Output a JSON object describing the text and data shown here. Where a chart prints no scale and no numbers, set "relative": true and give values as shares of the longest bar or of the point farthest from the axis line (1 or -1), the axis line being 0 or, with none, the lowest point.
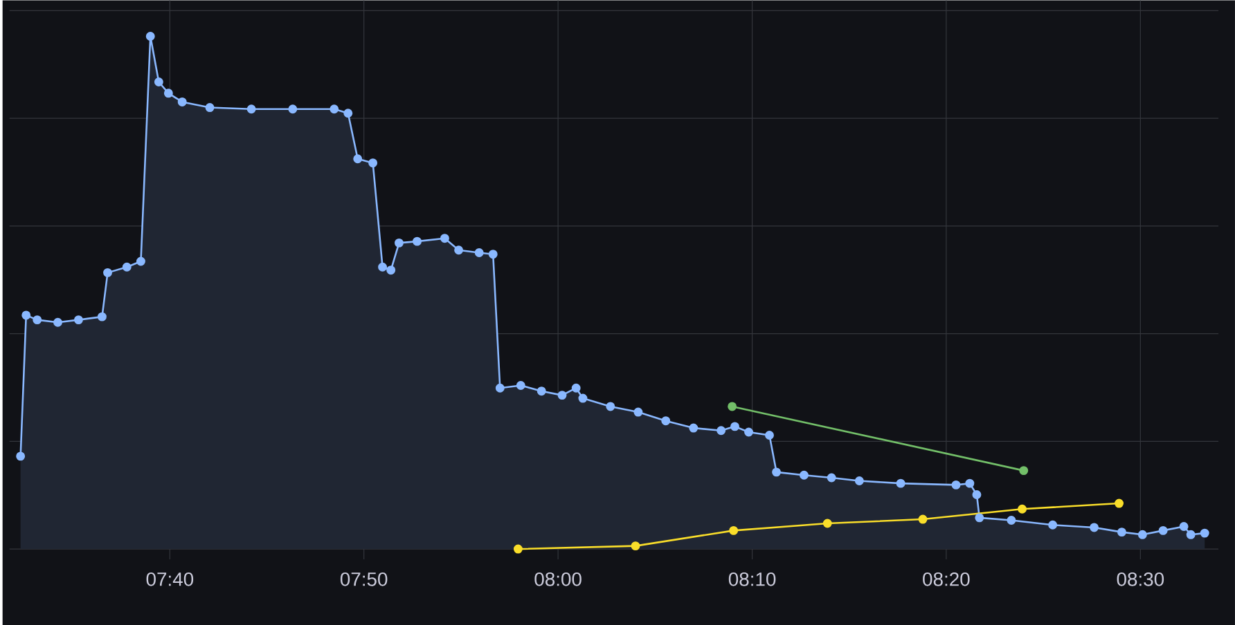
{
  "chart_data": {
    "type": "line",
    "relative": true,
    "grid": true,
    "marker": "circle",
    "xlim": [
      7.529,
      8.567
    ],
    "xticks": [
      {
        "value": 7.6667,
        "label": "07:40"
      },
      {
        "value": 7.8333,
        "label": "07:50"
      },
      {
        "value": 8.0,
        "label": "08:00"
      },
      {
        "value": 8.1667,
        "label": "08:10"
      },
      {
        "value": 8.3333,
        "label": "08:20"
      },
      {
        "value": 8.5,
        "label": "08:30"
      }
    ],
    "series": [
      {
        "type": "area",
        "color": "#8ab8ff",
        "x": [
          7.5385,
          7.5433,
          7.5528,
          7.5705,
          7.5883,
          7.6085,
          7.6133,
          7.6298,
          7.6418,
          7.65,
          7.6572,
          7.6655,
          7.6773,
          7.701,
          7.7367,
          7.7722,
          7.8078,
          7.8197,
          7.828,
          7.841,
          7.8493,
          7.8565,
          7.8635,
          7.879,
          7.9027,
          7.9147,
          7.9323,
          7.9442,
          7.9502,
          7.968,
          7.9858,
          8.0035,
          8.0155,
          8.0213,
          8.045,
          8.0688,
          8.0925,
          8.1163,
          8.14,
          8.1518,
          8.1637,
          8.1815,
          8.1875,
          8.2112,
          8.2348,
          8.2587,
          8.2942,
          8.3417,
          8.3535,
          8.3595,
          8.3618,
          8.3892,
          8.4247,
          8.4603,
          8.484,
          8.5018,
          8.5195,
          8.5373,
          8.5433,
          8.5552
        ],
        "values": [
          0.181,
          0.456,
          0.447,
          0.442,
          0.447,
          0.453,
          0.539,
          0.55,
          0.561,
          1,
          0.911,
          0.889,
          0.872,
          0.861,
          0.858,
          0.858,
          0.858,
          0.85,
          0.761,
          0.753,
          0.55,
          0.544,
          0.597,
          0.6,
          0.606,
          0.583,
          0.578,
          0.575,
          0.314,
          0.319,
          0.308,
          0.3,
          0.314,
          0.294,
          0.278,
          0.267,
          0.25,
          0.236,
          0.231,
          0.239,
          0.228,
          0.222,
          0.15,
          0.144,
          0.139,
          0.133,
          0.128,
          0.125,
          0.128,
          0.106,
          0.061,
          0.056,
          0.047,
          0.042,
          0.033,
          0.028,
          0.036,
          0.044,
          0.028,
          0.031
        ]
      },
      {
        "color": "#73bf69",
        "x": [
          8.1495,
          8.3998
        ],
        "values": [
          0.278,
          0.153
        ]
      },
      {
        "color": "#fade2a",
        "x": [
          7.9657,
          8.0665,
          8.1507,
          8.2313,
          8.3132,
          8.3985,
          8.4817
        ],
        "values": [
          0,
          0.006,
          0.036,
          0.05,
          0.058,
          0.078,
          0.089
        ]
      }
    ]
  }
}
